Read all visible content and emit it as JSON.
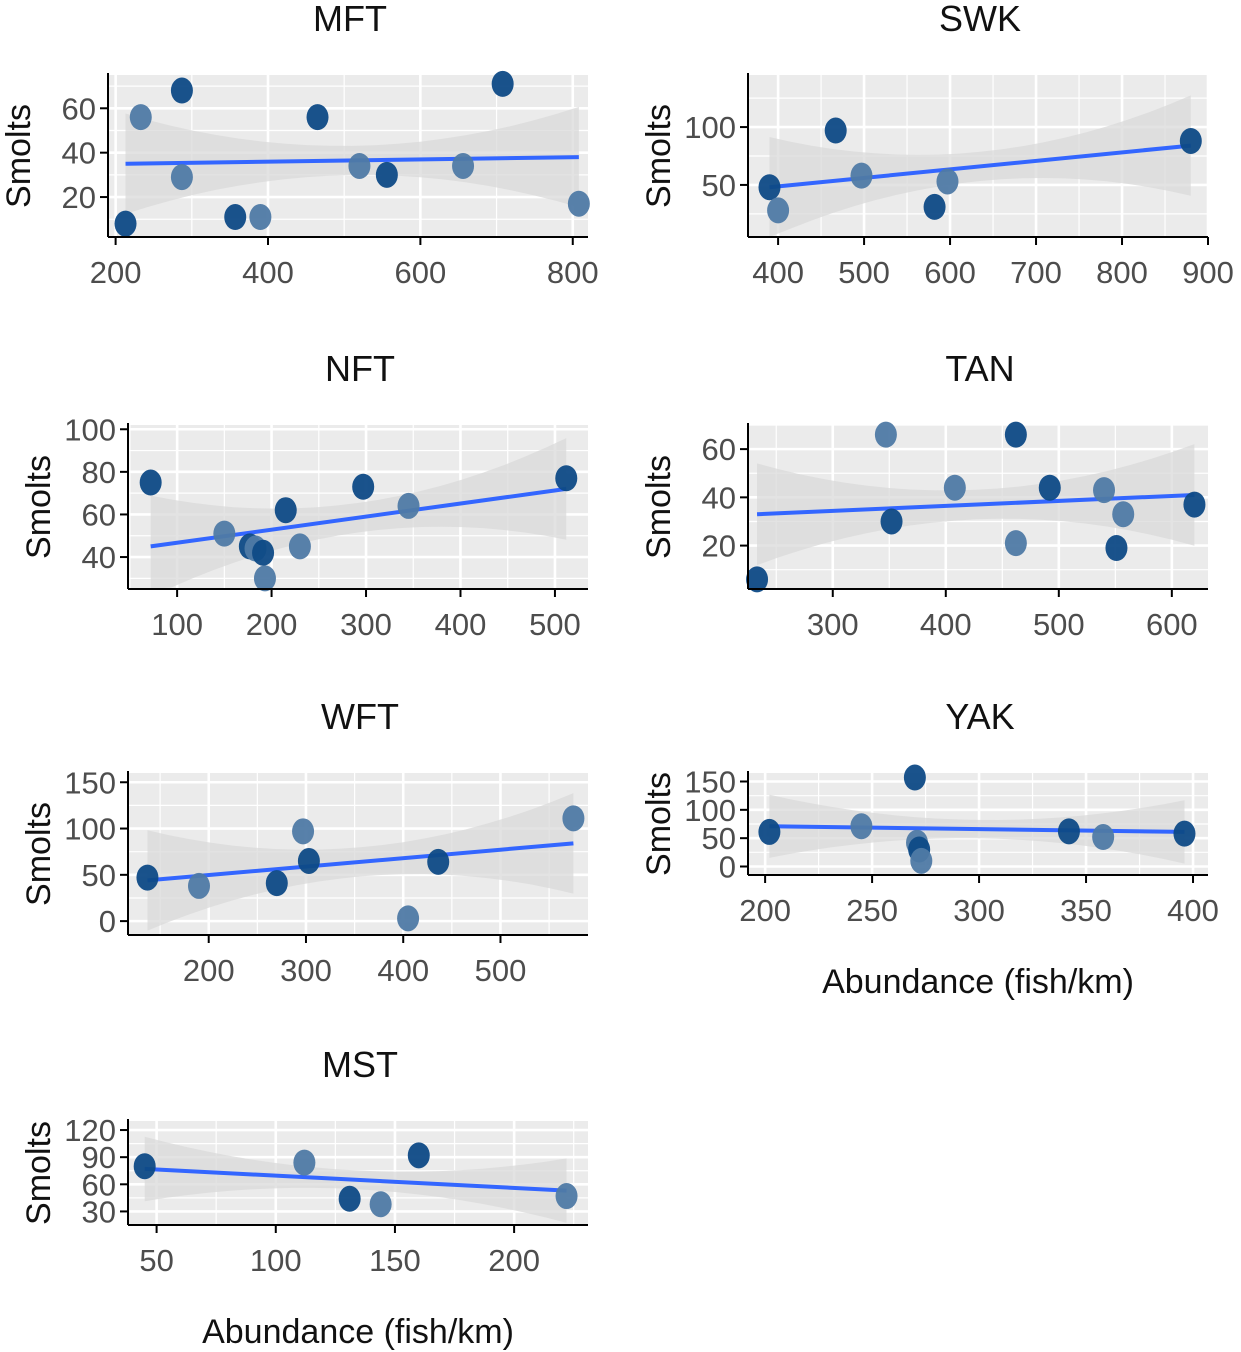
{
  "chart_data": [
    {
      "type": "scatter",
      "title": "MFT",
      "xlabel": "",
      "ylabel": "Smolts",
      "xlim": [
        190,
        820
      ],
      "ylim": [
        2,
        75
      ],
      "xticks": [
        200,
        400,
        600,
        800
      ],
      "yticks": [
        20,
        40,
        60
      ],
      "grid": true,
      "points": [
        {
          "x": 213,
          "y": 8
        },
        {
          "x": 233,
          "y": 56
        },
        {
          "x": 287,
          "y": 68
        },
        {
          "x": 287,
          "y": 29
        },
        {
          "x": 357,
          "y": 11
        },
        {
          "x": 390,
          "y": 11
        },
        {
          "x": 465,
          "y": 56
        },
        {
          "x": 520,
          "y": 34
        },
        {
          "x": 556,
          "y": 30
        },
        {
          "x": 656,
          "y": 34
        },
        {
          "x": 708,
          "y": 71
        },
        {
          "x": 808,
          "y": 17
        }
      ],
      "trend": {
        "x": [
          213,
          808
        ],
        "y": [
          35,
          38
        ]
      }
    },
    {
      "type": "scatter",
      "title": "SWK",
      "xlabel": "",
      "ylabel": "Smolts",
      "xlim": [
        365,
        900
      ],
      "ylim": [
        5,
        145
      ],
      "xticks": [
        400,
        500,
        600,
        700,
        800,
        900
      ],
      "yticks": [
        50,
        100
      ],
      "grid": true,
      "points": [
        {
          "x": 390,
          "y": 48
        },
        {
          "x": 400,
          "y": 28
        },
        {
          "x": 467,
          "y": 97
        },
        {
          "x": 497,
          "y": 58
        },
        {
          "x": 582,
          "y": 31
        },
        {
          "x": 597,
          "y": 53
        },
        {
          "x": 880,
          "y": 88
        }
      ],
      "trend": {
        "x": [
          390,
          880
        ],
        "y": [
          48,
          84
        ]
      }
    },
    {
      "type": "scatter",
      "title": "NFT",
      "xlabel": "",
      "ylabel": "Smolts",
      "xlim": [
        48,
        535
      ],
      "ylim": [
        25,
        102
      ],
      "xticks": [
        100,
        200,
        300,
        400,
        500
      ],
      "yticks": [
        40,
        60,
        80,
        100
      ],
      "grid": true,
      "points": [
        {
          "x": 72,
          "y": 75
        },
        {
          "x": 150,
          "y": 51
        },
        {
          "x": 177,
          "y": 45
        },
        {
          "x": 183,
          "y": 44
        },
        {
          "x": 191,
          "y": 42
        },
        {
          "x": 193,
          "y": 30
        },
        {
          "x": 215,
          "y": 62
        },
        {
          "x": 230,
          "y": 45
        },
        {
          "x": 297,
          "y": 73
        },
        {
          "x": 345,
          "y": 64
        },
        {
          "x": 512,
          "y": 77
        }
      ],
      "trend": {
        "x": [
          72,
          512
        ],
        "y": [
          45,
          72
        ]
      }
    },
    {
      "type": "scatter",
      "title": "TAN",
      "xlabel": "",
      "ylabel": "Smolts",
      "xlim": [
        225,
        632
      ],
      "ylim": [
        2,
        70
      ],
      "xticks": [
        300,
        400,
        500,
        600
      ],
      "yticks": [
        20,
        40,
        60
      ],
      "grid": true,
      "points": [
        {
          "x": 233,
          "y": 6
        },
        {
          "x": 347,
          "y": 66
        },
        {
          "x": 352,
          "y": 30
        },
        {
          "x": 408,
          "y": 44
        },
        {
          "x": 462,
          "y": 66
        },
        {
          "x": 462,
          "y": 21
        },
        {
          "x": 492,
          "y": 44
        },
        {
          "x": 540,
          "y": 43
        },
        {
          "x": 551,
          "y": 19
        },
        {
          "x": 557,
          "y": 33
        },
        {
          "x": 620,
          "y": 37
        }
      ],
      "trend": {
        "x": [
          233,
          620
        ],
        "y": [
          33,
          41
        ]
      }
    },
    {
      "type": "scatter",
      "title": "WFT",
      "xlabel": "",
      "ylabel": "Smolts",
      "xlim": [
        117,
        590
      ],
      "ylim": [
        -15,
        160
      ],
      "xticks": [
        200,
        300,
        400,
        500
      ],
      "yticks": [
        0,
        50,
        100,
        150
      ],
      "grid": true,
      "points": [
        {
          "x": 137,
          "y": 47
        },
        {
          "x": 190,
          "y": 38
        },
        {
          "x": 270,
          "y": 41
        },
        {
          "x": 297,
          "y": 97
        },
        {
          "x": 303,
          "y": 65
        },
        {
          "x": 405,
          "y": 3
        },
        {
          "x": 436,
          "y": 64
        },
        {
          "x": 575,
          "y": 111
        }
      ],
      "trend": {
        "x": [
          137,
          575
        ],
        "y": [
          44,
          84
        ]
      }
    },
    {
      "type": "scatter",
      "title": "YAK",
      "xlabel": "Abundance (fish/km)",
      "ylabel": "Smolts",
      "xlim": [
        192,
        407
      ],
      "ylim": [
        -15,
        165
      ],
      "xticks": [
        200,
        250,
        300,
        350,
        400
      ],
      "yticks": [
        0,
        50,
        100,
        150
      ],
      "grid": true,
      "points": [
        {
          "x": 202,
          "y": 61
        },
        {
          "x": 245,
          "y": 71
        },
        {
          "x": 270,
          "y": 157
        },
        {
          "x": 271,
          "y": 42
        },
        {
          "x": 272,
          "y": 30
        },
        {
          "x": 273,
          "y": 10
        },
        {
          "x": 342,
          "y": 62
        },
        {
          "x": 358,
          "y": 52
        },
        {
          "x": 396,
          "y": 58
        }
      ],
      "trend": {
        "x": [
          202,
          396
        ],
        "y": [
          71,
          61
        ]
      }
    },
    {
      "type": "scatter",
      "title": "MST",
      "xlabel": "Abundance (fish/km)",
      "ylabel": "Smolts",
      "xlim": [
        38,
        231
      ],
      "ylim": [
        15,
        130
      ],
      "xticks": [
        50,
        100,
        150,
        200
      ],
      "yticks": [
        30,
        60,
        90,
        120
      ],
      "grid": true,
      "points": [
        {
          "x": 45,
          "y": 80
        },
        {
          "x": 112,
          "y": 84
        },
        {
          "x": 131,
          "y": 44
        },
        {
          "x": 144,
          "y": 38
        },
        {
          "x": 160,
          "y": 92
        },
        {
          "x": 222,
          "y": 47
        }
      ],
      "trend": {
        "x": [
          45,
          222
        ],
        "y": [
          77,
          53
        ]
      }
    }
  ],
  "colors": {
    "panel_background": "#ebebeb",
    "grid_line": "#ffffff",
    "trend_line": "#3366ff",
    "ribbon": "#d9d9d9",
    "point_dark": "#0e4a86",
    "point_light": "#4f7aa5",
    "axis_line": "#000000",
    "tick_text": "#4d4d4d"
  }
}
